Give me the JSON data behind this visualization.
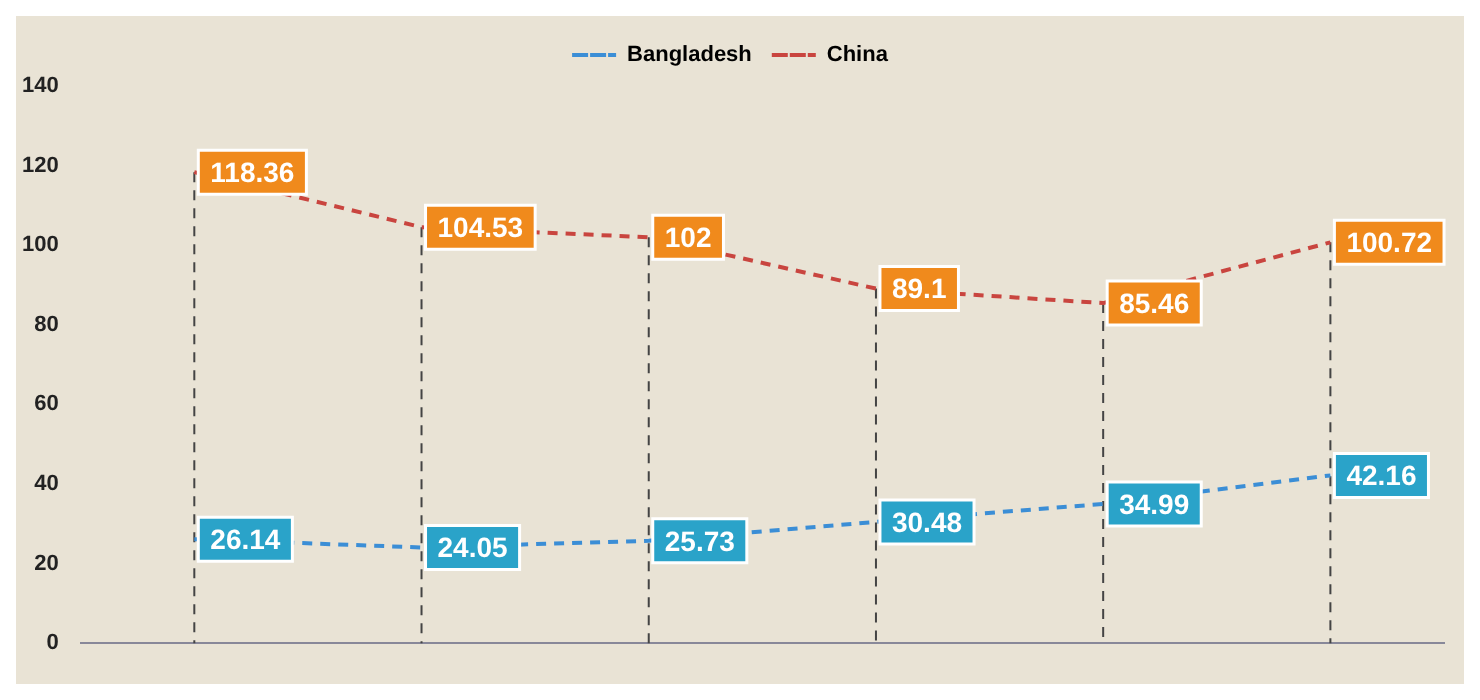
{
  "chart_data": {
    "type": "line",
    "categories": [
      null,
      null,
      null,
      null,
      null,
      null
    ],
    "series": [
      {
        "name": "Bangladesh",
        "color": "#3b8ed6",
        "values": [
          26.14,
          24.05,
          25.73,
          30.48,
          34.99,
          42.16
        ]
      },
      {
        "name": "China",
        "color": "#c9453f",
        "values": [
          118.36,
          104.53,
          102,
          89.1,
          85.46,
          100.72
        ]
      }
    ],
    "ylim": [
      0,
      140
    ],
    "yticks": [
      0,
      20,
      40,
      60,
      80,
      100,
      120,
      140
    ],
    "grid": "x",
    "legend": "top",
    "marker": "none",
    "line_style": "dashed",
    "data_labels": true
  }
}
